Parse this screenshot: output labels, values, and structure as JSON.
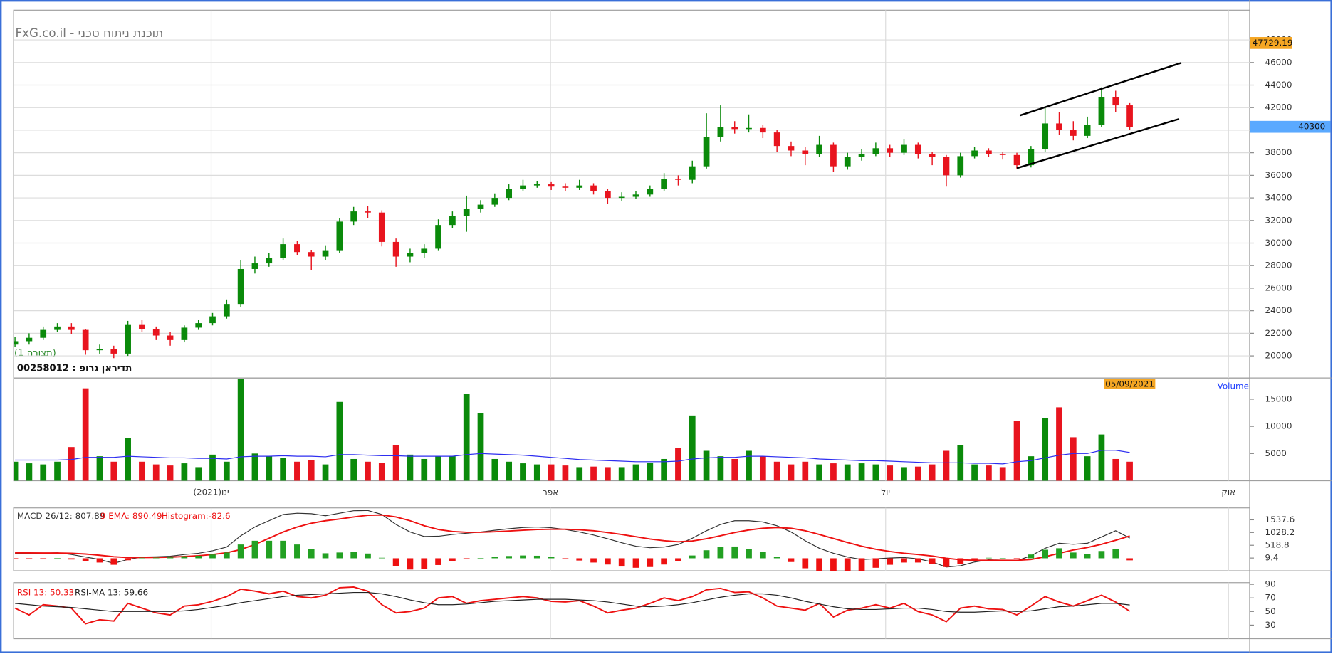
{
  "chart_data": [
    {
      "type": "candlestick",
      "title": "FxG.co.il - תוכנת ניתוח טכני",
      "subtitle": "(תצורה 1)",
      "instrument": "00258012 : תדיראן גרופ",
      "open": [
        21000,
        21300,
        21600,
        22300,
        22600,
        22300,
        20500,
        20600,
        20200,
        22800,
        22400,
        21800,
        21400,
        22500,
        22900,
        23500,
        24600,
        27700,
        28200,
        28700,
        29900,
        29200,
        28800,
        29300,
        31900,
        32800,
        32700,
        30100,
        28800,
        29100,
        29500,
        31600,
        32400,
        33000,
        33400,
        34000,
        34800,
        35100,
        35200,
        35000,
        34900,
        35100,
        34600,
        34000,
        34100,
        34300,
        34800,
        35700,
        35600,
        36800,
        39400,
        40300,
        40100,
        40200,
        39800,
        38600,
        38200,
        37900,
        38700,
        36800,
        37600,
        37900,
        38400,
        38000,
        38700,
        37900,
        37600,
        36000,
        37700,
        38200,
        37900,
        37800,
        36900,
        38300,
        40600,
        40000,
        39500,
        40500,
        42900,
        42200
      ],
      "high": [
        21700,
        22000,
        22600,
        22900,
        22900,
        22400,
        21000,
        20900,
        23100,
        23200,
        22600,
        22100,
        22700,
        23200,
        23800,
        25000,
        28500,
        28800,
        29100,
        30400,
        30200,
        29400,
        29800,
        32200,
        33200,
        33300,
        32900,
        30400,
        29500,
        29900,
        32100,
        32800,
        34200,
        33800,
        34400,
        35200,
        35600,
        35500,
        35400,
        35300,
        35600,
        35300,
        34800,
        34500,
        34600,
        35100,
        36200,
        36000,
        37300,
        41500,
        42200,
        40800,
        41400,
        40500,
        40000,
        39000,
        38500,
        39500,
        38900,
        38000,
        38300,
        38900,
        38700,
        39200,
        38900,
        38100,
        37800,
        38000,
        38500,
        38400,
        38100,
        38000,
        38600,
        42100,
        41600,
        40800,
        41200,
        43800,
        43500,
        42400
      ],
      "low": [
        20800,
        21000,
        21400,
        22100,
        21900,
        20100,
        20200,
        19800,
        20000,
        22100,
        21400,
        20900,
        21200,
        22300,
        22700,
        23300,
        24300,
        27300,
        27900,
        28500,
        28900,
        27600,
        28500,
        29100,
        31600,
        32200,
        29700,
        27900,
        28300,
        28700,
        29300,
        31300,
        31000,
        32700,
        33200,
        33800,
        34600,
        34900,
        34700,
        34600,
        34700,
        34300,
        33500,
        33700,
        33900,
        34100,
        34600,
        35100,
        35300,
        36600,
        39000,
        39700,
        39800,
        39300,
        38100,
        37700,
        36900,
        37600,
        36300,
        36500,
        37300,
        37700,
        37600,
        37800,
        37500,
        36900,
        35000,
        35800,
        37500,
        37600,
        37400,
        36600,
        36700,
        38100,
        39600,
        39100,
        39300,
        40300,
        41600,
        40000
      ],
      "close": [
        21300,
        21600,
        22300,
        22600,
        22300,
        20500,
        20600,
        20200,
        22800,
        22400,
        21800,
        21400,
        22500,
        22900,
        23500,
        24600,
        27700,
        28200,
        28700,
        29900,
        29200,
        28800,
        29300,
        31900,
        32800,
        32700,
        30100,
        28800,
        29100,
        29500,
        31600,
        32400,
        33000,
        33400,
        34000,
        34800,
        35100,
        35200,
        35000,
        34900,
        35100,
        34600,
        34000,
        34100,
        34300,
        34800,
        35700,
        35600,
        36800,
        39400,
        40300,
        40100,
        40200,
        39800,
        38600,
        38200,
        37900,
        38700,
        36800,
        37600,
        37900,
        38400,
        38000,
        38700,
        37900,
        37600,
        36000,
        37700,
        38200,
        37900,
        37800,
        36900,
        38300,
        40600,
        40000,
        39500,
        40500,
        42900,
        42200,
        40300
      ],
      "up_color": "#0a8a0a",
      "down_color": "#e8141e",
      "ylim": [
        18043,
        50634
      ],
      "yticks": [
        20000,
        22000,
        24000,
        26000,
        28000,
        30000,
        32000,
        34000,
        36000,
        38000,
        40000,
        42000,
        44000,
        46000,
        48000
      ],
      "grid": true,
      "trendlines": [
        {
          "x": [
            71.2,
            82.65
          ],
          "y": [
            41301,
            45968
          ]
        },
        {
          "x": [
            71,
            82.5
          ],
          "y": [
            36634,
            41000
          ]
        }
      ],
      "trendline_color": "#000000",
      "markers": [
        47729.19,
        40300
      ],
      "marker_colors": [
        "#f5a623",
        "#5aa9ff"
      ]
    },
    {
      "type": "bar",
      "last_date": "05/09/2021",
      "last_date_color": "#f5a623",
      "series": [
        {
          "name": "Volume",
          "type": "bar",
          "legend_color": "#1f3fff",
          "up_color": "#0a8a0a",
          "down_color": "#e8141e",
          "values": [
            3500,
            3200,
            3000,
            3500,
            6200,
            17000,
            4500,
            3500,
            7800,
            3500,
            3000,
            2800,
            3200,
            2500,
            4800,
            3500,
            18700,
            5000,
            4500,
            4200,
            3500,
            3800,
            3000,
            14500,
            4000,
            3500,
            3300,
            6500,
            4800,
            4000,
            4500,
            4500,
            16000,
            12500,
            4000,
            3500,
            3200,
            3000,
            3000,
            2800,
            2500,
            2600,
            2500,
            2500,
            3000,
            3300,
            4000,
            6000,
            12000,
            5500,
            4500,
            4000,
            5500,
            4500,
            3500,
            3000,
            3500,
            3000,
            3200,
            3000,
            3200,
            3000,
            2800,
            2500,
            2600,
            3000,
            5500,
            6500,
            3000,
            2800,
            2500,
            11000,
            4500,
            11500,
            13500,
            8000,
            4500,
            8500,
            4000,
            3500
          ]
        },
        {
          "type": "line",
          "color": "#2d2df0",
          "values": [
            3800,
            3800,
            3800,
            3800,
            3900,
            4300,
            4300,
            4300,
            4500,
            4400,
            4300,
            4200,
            4200,
            4100,
            4100,
            4000,
            4400,
            4500,
            4500,
            4600,
            4500,
            4500,
            4400,
            4800,
            4800,
            4700,
            4600,
            4600,
            4500,
            4500,
            4500,
            4500,
            4800,
            5000,
            4900,
            4800,
            4700,
            4500,
            4300,
            4100,
            3900,
            3800,
            3700,
            3600,
            3500,
            3500,
            3500,
            3600,
            4000,
            4200,
            4300,
            4300,
            4500,
            4500,
            4400,
            4300,
            4200,
            4000,
            3900,
            3800,
            3700,
            3700,
            3600,
            3500,
            3400,
            3300,
            3300,
            3300,
            3200,
            3200,
            3100,
            3500,
            3700,
            4200,
            4700,
            5000,
            5000,
            5600,
            5600,
            5200
          ]
        }
      ],
      "ylim": [
        0,
        18750
      ],
      "yticks": [
        5000,
        10000,
        15000
      ],
      "grid": false,
      "xlim": [
        -0.1,
        87.5
      ],
      "xticks": [
        {
          "value": 13.9,
          "label": "ינו(2021)"
        },
        {
          "value": 37.95,
          "label": "אפר"
        },
        {
          "value": 61.7,
          "label": "יול"
        },
        {
          "value": 86,
          "label": "אוק"
        }
      ]
    },
    {
      "type": "line",
      "series": [
        {
          "name": "MACD 26/12: 807.89",
          "type": "line",
          "color": "#333333",
          "values": [
            180,
            200,
            200,
            220,
            150,
            50,
            -50,
            -200,
            -50,
            50,
            60,
            80,
            150,
            200,
            300,
            450,
            900,
            1250,
            1500,
            1750,
            1800,
            1780,
            1700,
            1800,
            1900,
            1910,
            1750,
            1350,
            1050,
            870,
            880,
            950,
            1000,
            1050,
            1120,
            1180,
            1230,
            1250,
            1220,
            1150,
            1050,
            930,
            780,
            620,
            480,
            420,
            450,
            550,
            800,
            1100,
            1350,
            1500,
            1500,
            1450,
            1300,
            1050,
            700,
            400,
            200,
            50,
            -50,
            -20,
            10,
            30,
            -20,
            -150,
            -350,
            -300,
            -150,
            -60,
            -80,
            -100,
            100,
            400,
            600,
            560,
            600,
            850,
            1100,
            807.89
          ]
        },
        {
          "name": "9 EMA: 890.49",
          "type": "line",
          "color": "#ee1111",
          "values": [
            220,
            215,
            210,
            210,
            200,
            170,
            120,
            60,
            30,
            30,
            35,
            45,
            70,
            100,
            150,
            220,
            350,
            550,
            800,
            1050,
            1250,
            1400,
            1500,
            1570,
            1650,
            1720,
            1730,
            1650,
            1500,
            1300,
            1150,
            1070,
            1040,
            1040,
            1060,
            1090,
            1120,
            1150,
            1160,
            1160,
            1140,
            1100,
            1030,
            950,
            860,
            770,
            700,
            660,
            690,
            780,
            900,
            1030,
            1130,
            1200,
            1230,
            1200,
            1100,
            950,
            790,
            630,
            480,
            360,
            270,
            200,
            150,
            90,
            0,
            -60,
            -80,
            -80,
            -80,
            -85,
            -50,
            60,
            200,
            330,
            430,
            560,
            720,
            890.49
          ]
        },
        {
          "name": "Histogram:-82.6",
          "type": "bar",
          "color": "#22a022",
          "negative_color": "#ee1111",
          "values": [
            -40,
            -15,
            -10,
            10,
            -50,
            -120,
            -170,
            -260,
            -80,
            20,
            25,
            35,
            80,
            100,
            150,
            230,
            550,
            700,
            700,
            700,
            550,
            380,
            200,
            230,
            250,
            190,
            20,
            -300,
            -450,
            -430,
            -270,
            -120,
            -40,
            10,
            60,
            90,
            110,
            100,
            60,
            -10,
            -90,
            -170,
            -250,
            -330,
            -380,
            -350,
            -250,
            -110,
            110,
            320,
            450,
            470,
            370,
            250,
            70,
            -150,
            -400,
            -550,
            -590,
            -580,
            -530,
            -380,
            -260,
            -170,
            -170,
            -240,
            -350,
            -240,
            -70,
            20,
            0,
            -15,
            150,
            340,
            400,
            230,
            170,
            290,
            380,
            -82.6
          ]
        }
      ],
      "ylim": [
        -500,
        2013
      ],
      "yticks": [
        1537.6,
        1028.2,
        518.8,
        9.4
      ],
      "grid": false
    },
    {
      "type": "line",
      "series": [
        {
          "name": "RSI 13: 50.33",
          "type": "line",
          "color": "#ee1111",
          "values": [
            55,
            45,
            60,
            58,
            55,
            32,
            38,
            36,
            62,
            55,
            48,
            45,
            58,
            60,
            65,
            72,
            83,
            80,
            76,
            80,
            72,
            70,
            74,
            85,
            86,
            80,
            60,
            48,
            50,
            55,
            70,
            72,
            62,
            66,
            68,
            70,
            72,
            70,
            65,
            64,
            66,
            58,
            48,
            52,
            55,
            62,
            70,
            66,
            72,
            82,
            84,
            78,
            79,
            70,
            58,
            55,
            52,
            62,
            42,
            52,
            55,
            60,
            55,
            62,
            50,
            45,
            35,
            55,
            58,
            54,
            53,
            45,
            58,
            72,
            64,
            58,
            66,
            74,
            64,
            50.33
          ]
        },
        {
          "name": "RSI-MA 13: 59.66",
          "type": "line",
          "color": "#222222",
          "values": [
            62,
            60,
            58,
            57,
            56,
            54,
            52,
            50,
            50,
            50,
            50,
            50,
            51,
            53,
            56,
            59,
            63,
            66,
            69,
            72,
            74,
            75,
            76,
            77,
            78,
            78,
            76,
            72,
            67,
            63,
            60,
            60,
            61,
            63,
            65,
            66,
            67,
            68,
            68,
            68,
            67,
            66,
            64,
            61,
            58,
            57,
            58,
            60,
            63,
            67,
            71,
            74,
            76,
            76,
            74,
            70,
            65,
            61,
            57,
            54,
            53,
            53,
            54,
            55,
            55,
            53,
            50,
            49,
            49,
            50,
            51,
            50,
            51,
            54,
            57,
            58,
            60,
            62,
            62,
            59.66
          ]
        }
      ],
      "ylim": [
        10,
        92.5
      ],
      "yticks": [
        90,
        70,
        50,
        30
      ],
      "grid": false
    }
  ]
}
